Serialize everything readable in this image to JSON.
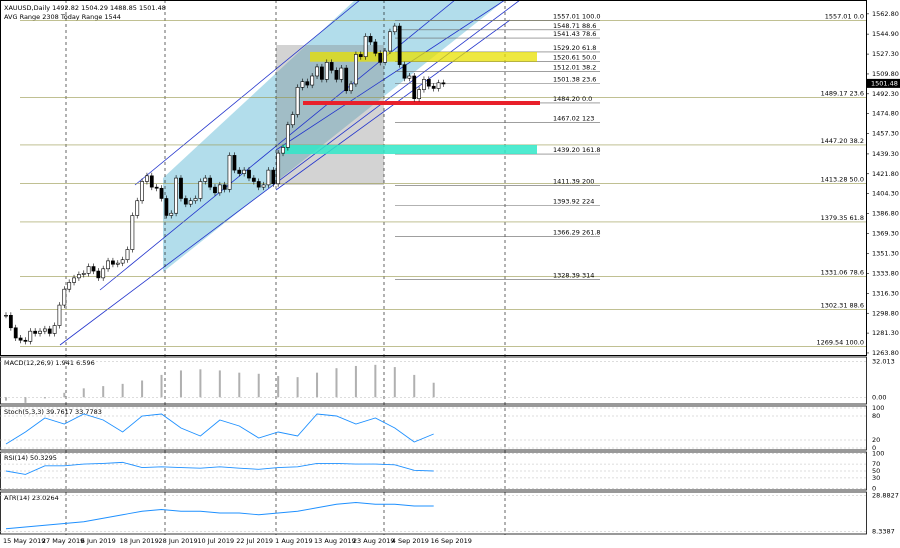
{
  "chart_data": {
    "type": "candlestick",
    "title": "XAUUSD,Daily 1492.82 1504.29 1488.85 1501.48",
    "subtitle": "AVG Range 2308   Today Range 1544",
    "date_labels": [
      "15 May 2019",
      "27 May 2019",
      "6 Jun 2019",
      "18 Jun 2019",
      "28 Jun 2019",
      "10 Jul 2019",
      "22 Jul 2019",
      "1 Aug 2019",
      "13 Aug 2019",
      "23 Aug 2019",
      "4 Sep 2019",
      "16 Sep 2019"
    ],
    "close": [
      1297,
      1286,
      1277,
      1275,
      1274,
      1283,
      1281,
      1283,
      1285,
      1281,
      1288,
      1306,
      1320,
      1326,
      1330,
      1333,
      1334,
      1340,
      1336,
      1330,
      1338,
      1345,
      1342,
      1343,
      1346,
      1355,
      1385,
      1398,
      1415,
      1420,
      1410,
      1409,
      1400,
      1385,
      1387,
      1418,
      1400,
      1395,
      1398,
      1400,
      1415,
      1418,
      1410,
      1405,
      1412,
      1408,
      1438,
      1425,
      1422,
      1425,
      1418,
      1415,
      1410,
      1412,
      1425,
      1413,
      1440,
      1445,
      1465,
      1474,
      1498,
      1503,
      1500,
      1508,
      1516,
      1505,
      1520,
      1513,
      1505,
      1515,
      1495,
      1501,
      1527,
      1525,
      1543,
      1538,
      1528,
      1520,
      1530,
      1547,
      1552,
      1518,
      1506,
      1508,
      1488,
      1496,
      1505,
      1499,
      1497,
      1502,
      1501
    ],
    "last_price": 1501.48,
    "ylim": [
      1262,
      1575
    ],
    "yticks": [
      {
        "value": 1562.8,
        "label": "1562.80"
      },
      {
        "value": 1544.9,
        "label": "1544.90"
      },
      {
        "value": 1527.3,
        "label": "1527.30"
      },
      {
        "value": 1509.8,
        "label": "1509.80"
      },
      {
        "value": 1492.3,
        "label": "1492.30"
      },
      {
        "value": 1474.8,
        "label": "1474.80"
      },
      {
        "value": 1457.3,
        "label": "1457.30"
      },
      {
        "value": 1439.3,
        "label": "1439.30"
      },
      {
        "value": 1421.8,
        "label": "1421.80"
      },
      {
        "value": 1404.3,
        "label": "1404.30"
      },
      {
        "value": 1386.8,
        "label": "1386.80"
      },
      {
        "value": 1369.3,
        "label": "1369.30"
      },
      {
        "value": 1351.3,
        "label": "1351.30"
      },
      {
        "value": 1333.8,
        "label": "1333.80"
      },
      {
        "value": 1316.3,
        "label": "1316.30"
      },
      {
        "value": 1298.8,
        "label": "1298.80"
      },
      {
        "value": 1281.3,
        "label": "1281.30"
      },
      {
        "value": 1263.8,
        "label": "1263.80"
      }
    ],
    "fib_levels": [
      {
        "value": 1557.01,
        "label": "1557.01  100.0"
      },
      {
        "value": 1548.71,
        "label": "1548.71  88.6"
      },
      {
        "value": 1541.43,
        "label": "1541.43  78.6"
      },
      {
        "value": 1529.2,
        "label": "1529.20  61.8"
      },
      {
        "value": 1520.61,
        "label": "1520.61  50.0"
      },
      {
        "value": 1512.01,
        "label": "1512.01  38.2"
      },
      {
        "value": 1501.38,
        "label": "1501.38  23.6"
      },
      {
        "value": 1484.2,
        "label": "1484.20  0.0"
      },
      {
        "value": 1467.02,
        "label": "1467.02  123"
      },
      {
        "value": 1439.2,
        "label": "1439.20  161.8"
      },
      {
        "value": 1411.39,
        "label": "1411.39  200"
      },
      {
        "value": 1393.92,
        "label": "1393.92  224"
      },
      {
        "value": 1366.29,
        "label": "1366.29  261.8"
      },
      {
        "value": 1328.39,
        "label": "1328.39  314"
      }
    ],
    "fib_levels_2": [
      {
        "value": 1557.01,
        "label": "1557.01  0.0"
      },
      {
        "value": 1489.17,
        "label": "1489.17  23.6"
      },
      {
        "value": 1447.2,
        "label": "1447.20  38.2"
      },
      {
        "value": 1413.28,
        "label": "1413.28  50.0"
      },
      {
        "value": 1379.35,
        "label": "1379.35  61.8"
      },
      {
        "value": 1331.06,
        "label": "1331.06  78.6"
      },
      {
        "value": 1302.31,
        "label": "1302.31  88.6"
      },
      {
        "value": 1269.54,
        "label": "1269.54  100.0"
      }
    ],
    "indicators": [
      {
        "type": "histogram",
        "label": "MACD(12,26,9) 1.941 6.596",
        "color": "#b0b0b0",
        "values": [
          -3,
          -5,
          -1,
          4,
          8,
          10,
          12,
          15,
          20,
          24,
          25,
          24,
          22,
          21,
          19,
          18,
          22,
          26,
          28,
          29,
          27,
          20,
          13
        ],
        "ylim": [
          -6,
          36
        ],
        "yticks": [
          32.013,
          {
            "value": 0,
            "label": "0.00"
          }
        ]
      },
      {
        "type": "line",
        "label": "Stoch(5,3,3) 39.7617 33.7783",
        "color": "#1e90ff",
        "values": [
          10,
          40,
          75,
          60,
          85,
          70,
          40,
          80,
          85,
          50,
          30,
          70,
          55,
          25,
          40,
          30,
          85,
          80,
          60,
          75,
          50,
          15,
          35
        ],
        "ylim": [
          -5,
          105
        ],
        "yticks": [
          100,
          80,
          20,
          0
        ]
      },
      {
        "type": "line",
        "label": "RSI(14) 50.3295",
        "color": "#1e90ff",
        "values": [
          50,
          40,
          65,
          65,
          70,
          72,
          75,
          60,
          62,
          60,
          58,
          62,
          58,
          55,
          60,
          62,
          72,
          72,
          70,
          70,
          68,
          52,
          50
        ],
        "ylim": [
          -5,
          105
        ],
        "yticks": [
          100,
          70,
          50,
          30,
          0
        ]
      },
      {
        "type": "line",
        "label": "ATR(14) 23.0264",
        "color": "#1e90ff",
        "values": [
          10,
          11,
          12,
          13,
          14,
          16,
          18,
          20,
          21,
          20,
          20,
          19,
          19,
          18,
          19,
          20,
          22,
          24,
          25,
          24,
          24,
          23,
          23
        ],
        "ylim": [
          7,
          31
        ],
        "yticks": [
          28.8827,
          8.3387
        ]
      }
    ]
  }
}
